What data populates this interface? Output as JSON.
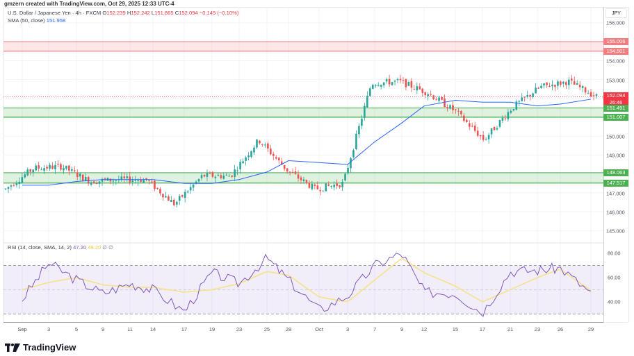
{
  "credit": "gmzern created with TradingView.com, Oct 29, 2025 12:33 UTC-4",
  "legend": {
    "symbol": "U.S. Dollar / Japanese Yen · 4h · FXCM",
    "o_label": "O",
    "o_value": "152.239",
    "h_label": "H",
    "h_value": "152.242",
    "l_label": "L",
    "l_value": "151.865",
    "c_label": "C",
    "c_value": "152.094",
    "change": "−0.145 (−0.10%)",
    "sma_label": "SMA (50, close)",
    "sma_value": "151.958"
  },
  "rsi_legend": {
    "label": "RSI (14, close, SMA, 14, 2)",
    "rsi_value": "47.20",
    "sma_value": "49.20",
    "extra": "∅ ∅"
  },
  "currency": "JPY",
  "price_axis": {
    "ticks": [
      "156.000",
      "154.000",
      "153.000",
      "150.000",
      "149.000",
      "147.000",
      "146.000",
      "145.000"
    ],
    "tags": [
      {
        "value": "155.006",
        "color": "#f77c80"
      },
      {
        "value": "154.501",
        "color": "#f77c80"
      },
      {
        "value": "152.094",
        "color": "#f23645",
        "countdown": "26:46"
      },
      {
        "value": "151.491",
        "color": "#4caf50"
      },
      {
        "value": "151.007",
        "color": "#4caf50"
      },
      {
        "value": "148.063",
        "color": "#4caf50"
      },
      {
        "value": "147.517",
        "color": "#4caf50"
      }
    ]
  },
  "rsi_axis": {
    "ticks": [
      "80.00",
      "60.00",
      "40.00"
    ]
  },
  "time_axis": {
    "labels": [
      "Sep",
      "3",
      "5",
      "9",
      "11",
      "14",
      "17",
      "19",
      "23",
      "25",
      "28",
      "Oct",
      "3",
      "7",
      "9",
      "12",
      "15",
      "17",
      "21",
      "23",
      "26",
      "29"
    ]
  },
  "brand": "TradingView",
  "colors": {
    "up": "#26a69a",
    "down": "#ef5350",
    "sma": "#2962ff",
    "rsi": "#7e57c2",
    "rsi_sma": "#f5e28a",
    "resistance_zone": "#f77c80",
    "support_zone": "#4caf50"
  },
  "chart_data": [
    {
      "type": "line",
      "title": "U.S. Dollar / Japanese Yen · 4h · FXCM (candlestick)",
      "xlabel": "",
      "ylabel": "JPY",
      "ylim": [
        144.6,
        156.4
      ],
      "grid": true,
      "categories": [
        "Sep 1",
        "Sep 3",
        "Sep 5",
        "Sep 9",
        "Sep 11",
        "Sep 14",
        "Sep 17",
        "Sep 19",
        "Sep 23",
        "Sep 25",
        "Sep 28",
        "Oct 1",
        "Oct 3",
        "Oct 7",
        "Oct 9",
        "Oct 12",
        "Oct 15",
        "Oct 17",
        "Oct 21",
        "Oct 23",
        "Oct 26",
        "Oct 29"
      ],
      "series": [
        {
          "name": "Close (approx.)",
          "values": [
            147.2,
            148.3,
            148.4,
            147.6,
            147.7,
            147.7,
            146.4,
            147.9,
            147.9,
            149.8,
            148.2,
            147.2,
            147.5,
            152.8,
            152.9,
            152.3,
            151.3,
            149.8,
            151.5,
            152.6,
            152.9,
            152.094
          ]
        },
        {
          "name": "SMA (50, close)",
          "values": [
            147.4,
            147.4,
            147.6,
            147.7,
            147.7,
            147.7,
            147.5,
            147.5,
            147.7,
            148.1,
            148.7,
            148.6,
            148.5,
            149.7,
            150.7,
            151.6,
            151.9,
            151.8,
            151.8,
            151.6,
            151.7,
            151.958
          ]
        }
      ],
      "ohlc_last": {
        "open": 152.239,
        "high": 152.242,
        "low": 151.865,
        "close": 152.094,
        "change": -0.145,
        "change_pct": -0.1
      },
      "annotations": [
        {
          "type": "zone",
          "label": "resistance",
          "from": 154.501,
          "to": 155.006
        },
        {
          "type": "zone",
          "label": "support",
          "from": 151.007,
          "to": 151.491
        },
        {
          "type": "zone",
          "label": "support",
          "from": 147.517,
          "to": 148.063
        },
        {
          "type": "price_line",
          "value": 152.094
        }
      ]
    },
    {
      "type": "line",
      "title": "RSI (14, close, SMA, 14, 2)",
      "ylim": [
        25,
        85
      ],
      "bands": [
        30,
        50,
        70
      ],
      "categories": [
        "Sep 1",
        "Sep 3",
        "Sep 5",
        "Sep 9",
        "Sep 11",
        "Sep 14",
        "Sep 17",
        "Sep 19",
        "Sep 23",
        "Sep 25",
        "Sep 28",
        "Oct 1",
        "Oct 3",
        "Oct 7",
        "Oct 9",
        "Oct 12",
        "Oct 15",
        "Oct 17",
        "Oct 21",
        "Oct 23",
        "Oct 26",
        "Oct 29"
      ],
      "series": [
        {
          "name": "RSI",
          "values": [
            42,
            72,
            58,
            47,
            55,
            50,
            32,
            64,
            55,
            76,
            58,
            33,
            45,
            70,
            80,
            48,
            47,
            31,
            65,
            66,
            68,
            47.2
          ]
        },
        {
          "name": "RSI-based SMA",
          "values": [
            50,
            56,
            60,
            54,
            52,
            52,
            48,
            50,
            55,
            65,
            62,
            44,
            40,
            58,
            76,
            64,
            53,
            40,
            50,
            60,
            67,
            49.2
          ]
        }
      ]
    }
  ]
}
